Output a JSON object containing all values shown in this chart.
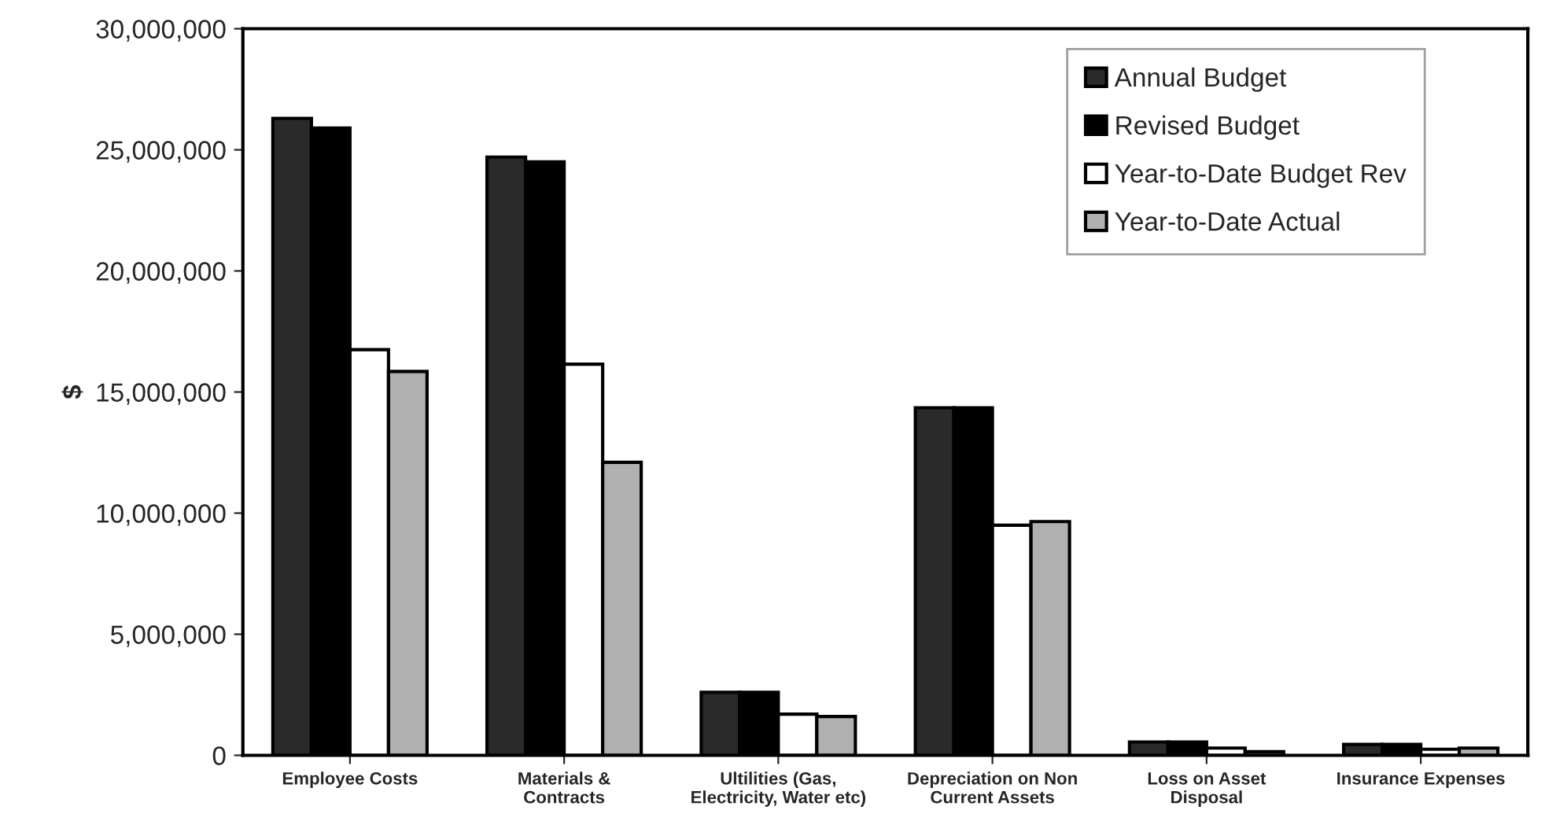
{
  "chart_data": {
    "type": "bar",
    "categories": [
      "Employee Costs",
      "Materials &\nContracts",
      "Ultilities (Gas,\nElectricity, Water etc)",
      "Depreciation on Non\nCurrent Assets",
      "Loss on Asset\nDisposal",
      "Insurance Expenses"
    ],
    "series": [
      {
        "name": "Annual Budget",
        "color": "#2a2a2a",
        "values": [
          26300000,
          24700000,
          2600000,
          14350000,
          550000,
          450000
        ]
      },
      {
        "name": "Revised Budget",
        "color": "#000000",
        "values": [
          25900000,
          24500000,
          2600000,
          14350000,
          550000,
          450000
        ]
      },
      {
        "name": "Year-to-Date Budget Rev",
        "color": "#ffffff",
        "values": [
          16750000,
          16150000,
          1700000,
          9500000,
          300000,
          250000
        ]
      },
      {
        "name": "Year-to-Date Actual",
        "color": "#b0b0b0",
        "values": [
          15850000,
          12100000,
          1600000,
          9650000,
          150000,
          300000
        ]
      }
    ],
    "ylabel": "$",
    "ylim": [
      0,
      30000000
    ],
    "yticks": [
      {
        "value": 0,
        "label": "0"
      },
      {
        "value": 5000000,
        "label": "5,000,000"
      },
      {
        "value": 10000000,
        "label": "10,000,000"
      },
      {
        "value": 15000000,
        "label": "15,000,000"
      },
      {
        "value": 20000000,
        "label": "20,000,000"
      },
      {
        "value": 25000000,
        "label": "25,000,000"
      },
      {
        "value": 30000000,
        "label": "30,000,000"
      }
    ],
    "legend": "top right",
    "grid": false
  }
}
